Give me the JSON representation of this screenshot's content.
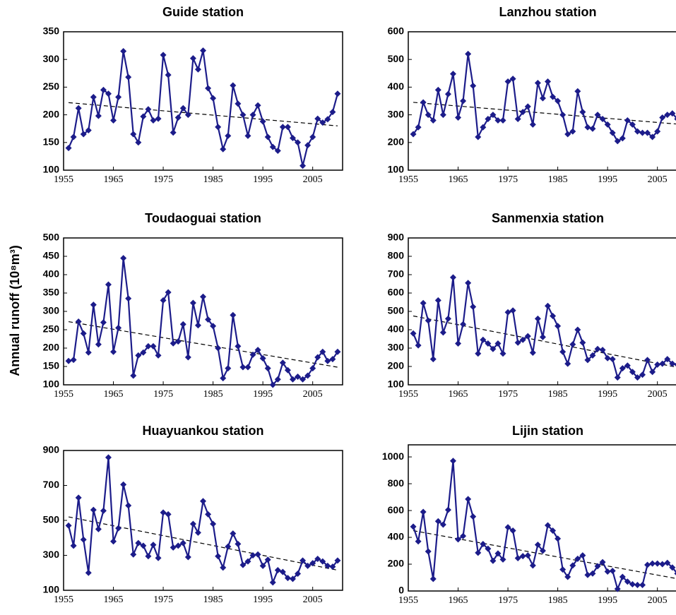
{
  "ylabel": "Annual runoff (10⁸m³)",
  "chart_data": [
    {
      "type": "line",
      "title": "Guide station",
      "color": "#1c1c8a",
      "xlim": [
        1955,
        2011
      ],
      "xticks": [
        1955,
        1965,
        1975,
        1985,
        1995,
        2005
      ],
      "ylim": [
        100,
        350
      ],
      "yticks": [
        100,
        150,
        200,
        250,
        300,
        350
      ],
      "x": [
        1956,
        1957,
        1958,
        1959,
        1960,
        1961,
        1962,
        1963,
        1964,
        1965,
        1966,
        1967,
        1968,
        1969,
        1970,
        1971,
        1972,
        1973,
        1974,
        1975,
        1976,
        1977,
        1978,
        1979,
        1980,
        1981,
        1982,
        1983,
        1984,
        1985,
        1986,
        1987,
        1988,
        1989,
        1990,
        1991,
        1992,
        1993,
        1994,
        1995,
        1996,
        1997,
        1998,
        1999,
        2000,
        2001,
        2002,
        2003,
        2004,
        2005,
        2006,
        2007,
        2008,
        2009,
        2010
      ],
      "values": [
        140,
        160,
        212,
        165,
        172,
        232,
        198,
        245,
        238,
        190,
        232,
        315,
        268,
        165,
        150,
        197,
        210,
        190,
        193,
        308,
        272,
        168,
        195,
        212,
        200,
        302,
        282,
        316,
        248,
        230,
        178,
        138,
        162,
        253,
        220,
        200,
        162,
        200,
        217,
        188,
        160,
        142,
        135,
        178,
        178,
        158,
        150,
        108,
        145,
        160,
        193,
        186,
        192,
        205,
        238
      ],
      "trend_x": [
        1956,
        2010
      ],
      "trend_values": [
        222,
        180
      ]
    },
    {
      "type": "line",
      "title": "Lanzhou station",
      "color": "#1c1c8a",
      "xlim": [
        1955,
        2011
      ],
      "xticks": [
        1955,
        1965,
        1975,
        1985,
        1995,
        2005
      ],
      "ylim": [
        100,
        600
      ],
      "yticks": [
        100,
        200,
        300,
        400,
        500,
        600
      ],
      "x": [
        1956,
        1957,
        1958,
        1959,
        1960,
        1961,
        1962,
        1963,
        1964,
        1965,
        1966,
        1967,
        1968,
        1969,
        1970,
        1971,
        1972,
        1973,
        1974,
        1975,
        1976,
        1977,
        1978,
        1979,
        1980,
        1981,
        1982,
        1983,
        1984,
        1985,
        1986,
        1987,
        1988,
        1989,
        1990,
        1991,
        1992,
        1993,
        1994,
        1995,
        1996,
        1997,
        1998,
        1999,
        2000,
        2001,
        2002,
        2003,
        2004,
        2005,
        2006,
        2007,
        2008,
        2009,
        2010
      ],
      "values": [
        230,
        255,
        345,
        300,
        280,
        390,
        300,
        375,
        448,
        290,
        350,
        520,
        405,
        220,
        255,
        285,
        300,
        280,
        280,
        420,
        430,
        285,
        310,
        330,
        265,
        415,
        360,
        420,
        365,
        350,
        300,
        230,
        240,
        385,
        310,
        255,
        250,
        300,
        285,
        265,
        235,
        205,
        215,
        280,
        265,
        240,
        235,
        235,
        220,
        240,
        290,
        300,
        305,
        285,
        305
      ],
      "trend_x": [
        1956,
        2010
      ],
      "trend_values": [
        345,
        265
      ]
    },
    {
      "type": "line",
      "title": "Toudaoguai station",
      "color": "#1c1c8a",
      "xlim": [
        1955,
        2011
      ],
      "xticks": [
        1955,
        1965,
        1975,
        1985,
        1995,
        2005
      ],
      "ylim": [
        100,
        500
      ],
      "yticks": [
        100,
        150,
        200,
        250,
        300,
        350,
        400,
        450,
        500
      ],
      "x": [
        1956,
        1957,
        1958,
        1959,
        1960,
        1961,
        1962,
        1963,
        1964,
        1965,
        1966,
        1967,
        1968,
        1969,
        1970,
        1971,
        1972,
        1973,
        1974,
        1975,
        1976,
        1977,
        1978,
        1979,
        1980,
        1981,
        1982,
        1983,
        1984,
        1985,
        1986,
        1987,
        1988,
        1989,
        1990,
        1991,
        1992,
        1993,
        1994,
        1995,
        1996,
        1997,
        1998,
        1999,
        2000,
        2001,
        2002,
        2003,
        2004,
        2005,
        2006,
        2007,
        2008,
        2009,
        2010
      ],
      "values": [
        165,
        168,
        272,
        240,
        188,
        318,
        210,
        270,
        373,
        190,
        255,
        445,
        335,
        125,
        180,
        188,
        205,
        205,
        180,
        330,
        352,
        213,
        218,
        265,
        175,
        323,
        262,
        340,
        278,
        260,
        200,
        118,
        145,
        290,
        205,
        148,
        148,
        182,
        195,
        172,
        145,
        100,
        115,
        160,
        140,
        115,
        122,
        115,
        125,
        145,
        175,
        190,
        165,
        170,
        190
      ],
      "trend_x": [
        1956,
        2010
      ],
      "trend_values": [
        272,
        148
      ]
    },
    {
      "type": "line",
      "title": "Sanmenxia station",
      "color": "#1c1c8a",
      "xlim": [
        1955,
        2011
      ],
      "xticks": [
        1955,
        1965,
        1975,
        1985,
        1995,
        2005
      ],
      "ylim": [
        100,
        900
      ],
      "yticks": [
        100,
        200,
        300,
        400,
        500,
        600,
        700,
        800,
        900
      ],
      "x": [
        1956,
        1957,
        1958,
        1959,
        1960,
        1961,
        1962,
        1963,
        1964,
        1965,
        1966,
        1967,
        1968,
        1969,
        1970,
        1971,
        1972,
        1973,
        1974,
        1975,
        1976,
        1977,
        1978,
        1979,
        1980,
        1981,
        1982,
        1983,
        1984,
        1985,
        1986,
        1987,
        1988,
        1989,
        1990,
        1991,
        1992,
        1993,
        1994,
        1995,
        1996,
        1997,
        1998,
        1999,
        2000,
        2001,
        2002,
        2003,
        2004,
        2005,
        2006,
        2007,
        2008,
        2009,
        2010
      ],
      "values": [
        380,
        315,
        545,
        450,
        240,
        560,
        385,
        460,
        685,
        325,
        430,
        655,
        525,
        270,
        345,
        325,
        295,
        325,
        270,
        495,
        505,
        330,
        345,
        365,
        275,
        460,
        360,
        530,
        475,
        420,
        280,
        215,
        320,
        400,
        330,
        235,
        260,
        295,
        290,
        245,
        240,
        140,
        190,
        205,
        170,
        140,
        155,
        235,
        170,
        210,
        215,
        240,
        215,
        210,
        215
      ],
      "trend_x": [
        1956,
        2010
      ],
      "trend_values": [
        475,
        190
      ]
    },
    {
      "type": "line",
      "title": "Huayuankou station",
      "color": "#1c1c8a",
      "xlim": [
        1955,
        2011
      ],
      "xticks": [
        1955,
        1965,
        1975,
        1985,
        1995,
        2005
      ],
      "ylim": [
        100,
        900
      ],
      "yticks": [
        100,
        300,
        500,
        700,
        900
      ],
      "x": [
        1956,
        1957,
        1958,
        1959,
        1960,
        1961,
        1962,
        1963,
        1964,
        1965,
        1966,
        1967,
        1968,
        1969,
        1970,
        1971,
        1972,
        1973,
        1974,
        1975,
        1976,
        1977,
        1978,
        1979,
        1980,
        1981,
        1982,
        1983,
        1984,
        1985,
        1986,
        1987,
        1988,
        1989,
        1990,
        1991,
        1992,
        1993,
        1994,
        1995,
        1996,
        1997,
        1998,
        1999,
        2000,
        2001,
        2002,
        2003,
        2004,
        2005,
        2006,
        2007,
        2008,
        2009,
        2010
      ],
      "values": [
        470,
        355,
        630,
        390,
        200,
        560,
        450,
        555,
        860,
        380,
        455,
        705,
        585,
        305,
        370,
        355,
        295,
        360,
        285,
        545,
        535,
        345,
        355,
        370,
        290,
        480,
        430,
        610,
        535,
        480,
        295,
        230,
        350,
        425,
        365,
        245,
        265,
        300,
        305,
        240,
        275,
        145,
        215,
        205,
        170,
        165,
        195,
        270,
        240,
        255,
        280,
        265,
        240,
        235,
        270
      ],
      "trend_x": [
        1956,
        2010
      ],
      "trend_values": [
        520,
        215
      ]
    },
    {
      "type": "line",
      "title": "Lijin station",
      "color": "#1c1c8a",
      "xlim": [
        1955,
        2011
      ],
      "xticks": [
        1955,
        1965,
        1975,
        1985,
        1995,
        2005
      ],
      "ylim": [
        0,
        1090
      ],
      "yticks": [
        0,
        200,
        400,
        600,
        800,
        1000
      ],
      "x": [
        1956,
        1957,
        1958,
        1959,
        1960,
        1961,
        1962,
        1963,
        1964,
        1965,
        1966,
        1967,
        1968,
        1969,
        1970,
        1971,
        1972,
        1973,
        1974,
        1975,
        1976,
        1977,
        1978,
        1979,
        1980,
        1981,
        1982,
        1983,
        1984,
        1985,
        1986,
        1987,
        1988,
        1989,
        1990,
        1991,
        1992,
        1993,
        1994,
        1995,
        1996,
        1997,
        1998,
        1999,
        2000,
        2001,
        2002,
        2003,
        2004,
        2005,
        2006,
        2007,
        2008,
        2009,
        2010
      ],
      "values": [
        480,
        370,
        590,
        295,
        90,
        520,
        495,
        605,
        970,
        385,
        410,
        685,
        555,
        285,
        350,
        315,
        225,
        280,
        235,
        475,
        450,
        245,
        260,
        265,
        190,
        345,
        300,
        490,
        450,
        390,
        160,
        105,
        190,
        240,
        265,
        120,
        130,
        185,
        215,
        145,
        150,
        15,
        105,
        70,
        50,
        45,
        45,
        195,
        205,
        205,
        200,
        210,
        175,
        130,
        140
      ],
      "trend_x": [
        1956,
        2010
      ],
      "trend_values": [
        450,
        85
      ]
    }
  ]
}
